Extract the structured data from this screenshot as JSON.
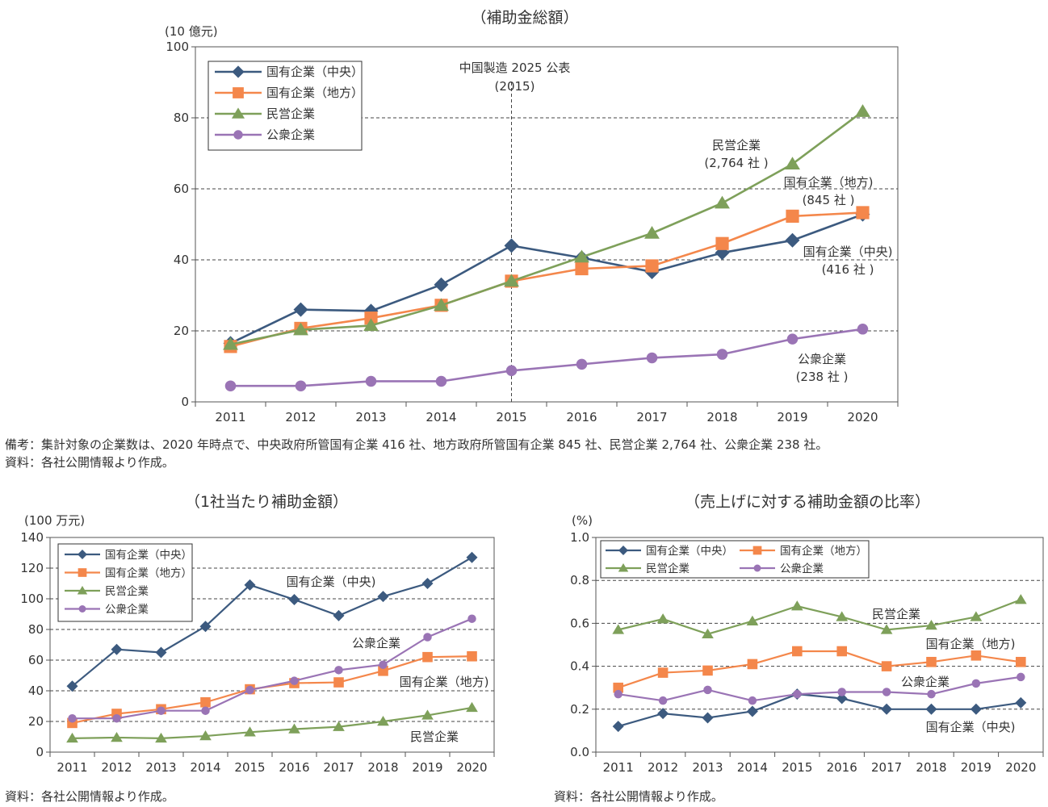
{
  "colors": {
    "soe_central": "#3c5a7f",
    "soe_local": "#f4874b",
    "private": "#7ea05a",
    "public": "#9a74b5",
    "grid": "#444444",
    "axis": "#555555"
  },
  "notes": {
    "top_note": "備考：集計対象の企業数は、2020 年時点で、中央政府所管国有企業 416 社、地方政府所管国有企業 845 社、民営企業 2,764 社、公衆企業 238 社。",
    "top_source": "資料：各社公開情報より作成。",
    "bl_source": "資料：各社公開情報より作成。",
    "br_source": "資料：各社公開情報より作成。"
  },
  "chart_data": [
    {
      "type": "line",
      "title": "（補助金総額）",
      "ylabel": "(10 億元)",
      "x": [
        "2011",
        "2012",
        "2013",
        "2014",
        "2015",
        "2016",
        "2017",
        "2018",
        "2019",
        "2020"
      ],
      "ylim": [
        0,
        100
      ],
      "yticks": [
        0,
        20,
        40,
        60,
        80,
        100
      ],
      "ytick_labels": [
        "0",
        "20",
        "40",
        "60",
        "80",
        "100"
      ],
      "grid": true,
      "legend": "top-left",
      "vline": {
        "x": "2015",
        "label1": "中国製造 2025 公表",
        "label2": "(2015)"
      },
      "series": [
        {
          "key": "soe_central",
          "name": "国有企業（中央）",
          "marker": "diamond",
          "values": [
            16.5,
            26.0,
            25.6,
            33.0,
            44.0,
            40.6,
            36.6,
            42.0,
            45.5,
            52.8
          ]
        },
        {
          "key": "soe_local",
          "name": "国有企業（地方）",
          "marker": "square",
          "values": [
            15.6,
            20.7,
            23.6,
            27.2,
            34.0,
            37.5,
            38.3,
            44.6,
            52.3,
            53.3
          ]
        },
        {
          "key": "private",
          "name": "民営企業",
          "marker": "triangle",
          "values": [
            16.2,
            20.3,
            21.5,
            27.2,
            34.0,
            40.8,
            47.5,
            56.0,
            67.0,
            81.8
          ]
        },
        {
          "key": "public",
          "name": "公衆企業",
          "marker": "circle",
          "values": [
            4.5,
            4.5,
            5.8,
            5.8,
            8.8,
            10.6,
            12.4,
            13.4,
            17.7,
            20.5
          ]
        }
      ],
      "annotations": [
        {
          "series": "private",
          "lines": [
            "民営企業",
            "(2,764 社 )"
          ]
        },
        {
          "series": "soe_local",
          "lines": [
            "国有企業（地方)",
            "(845 社 )"
          ]
        },
        {
          "series": "soe_central",
          "lines": [
            "国有企業（中央)",
            "(416 社 )"
          ]
        },
        {
          "series": "public",
          "lines": [
            "公衆企業",
            "(238 社 )"
          ]
        }
      ]
    },
    {
      "type": "line",
      "title": "（1社当たり補助金額）",
      "ylabel": "(100 万元)",
      "x": [
        "2011",
        "2012",
        "2013",
        "2014",
        "2015",
        "2016",
        "2017",
        "2018",
        "2019",
        "2020"
      ],
      "ylim": [
        0,
        140
      ],
      "yticks": [
        0,
        20,
        40,
        60,
        80,
        100,
        120,
        140
      ],
      "ytick_labels": [
        "0",
        "20",
        "40",
        "60",
        "80",
        "100",
        "120",
        "140"
      ],
      "grid": true,
      "legend": "top-left",
      "series": [
        {
          "key": "soe_central",
          "name": "国有企業（中央）",
          "marker": "diamond",
          "values": [
            43,
            67,
            65,
            82,
            109,
            99.5,
            89,
            101.5,
            110,
            127
          ]
        },
        {
          "key": "soe_local",
          "name": "国有企業（地方）",
          "marker": "square",
          "values": [
            19,
            25,
            28,
            32.5,
            41,
            45,
            45.5,
            53,
            62,
            62.5
          ]
        },
        {
          "key": "private",
          "name": "民営企業",
          "marker": "triangle",
          "values": [
            9,
            9.5,
            9,
            10.5,
            13,
            15,
            16.5,
            20,
            24,
            29
          ]
        },
        {
          "key": "public",
          "name": "公衆企業",
          "marker": "circle",
          "values": [
            22,
            22,
            27,
            27,
            40.5,
            46.5,
            53.5,
            57,
            75,
            87
          ]
        }
      ],
      "annotations": [
        {
          "series": "soe_central",
          "lines": [
            "国有企業（中央)"
          ]
        },
        {
          "series": "public",
          "lines": [
            "公衆企業"
          ]
        },
        {
          "series": "soe_local",
          "lines": [
            "国有企業（地方)"
          ]
        },
        {
          "series": "private",
          "lines": [
            "民営企業"
          ]
        }
      ]
    },
    {
      "type": "line",
      "title": "（売上げに対する補助金額の比率）",
      "ylabel": "(%)",
      "x": [
        "2011",
        "2012",
        "2013",
        "2014",
        "2015",
        "2016",
        "2017",
        "2018",
        "2019",
        "2020"
      ],
      "ylim": [
        0,
        1.0
      ],
      "yticks": [
        0,
        0.2,
        0.4,
        0.6,
        0.8,
        1.0
      ],
      "ytick_labels": [
        "0.0",
        "0.2",
        "0.4",
        "0.6",
        "0.8",
        "1.0"
      ],
      "grid": true,
      "legend": "top-left",
      "series": [
        {
          "key": "soe_central",
          "name": "国有企業（中央）",
          "marker": "diamond",
          "values": [
            0.12,
            0.18,
            0.16,
            0.19,
            0.27,
            0.25,
            0.2,
            0.2,
            0.2,
            0.23
          ]
        },
        {
          "key": "soe_local",
          "name": "国有企業（地方）",
          "marker": "square",
          "values": [
            0.3,
            0.37,
            0.38,
            0.41,
            0.47,
            0.47,
            0.4,
            0.42,
            0.45,
            0.42
          ]
        },
        {
          "key": "private",
          "name": "民営企業",
          "marker": "triangle",
          "values": [
            0.57,
            0.62,
            0.55,
            0.61,
            0.68,
            0.63,
            0.57,
            0.59,
            0.63,
            0.71
          ]
        },
        {
          "key": "public",
          "name": "公衆企業",
          "marker": "circle",
          "values": [
            0.27,
            0.24,
            0.29,
            0.24,
            0.27,
            0.28,
            0.28,
            0.27,
            0.32,
            0.35
          ]
        }
      ],
      "annotations": [
        {
          "series": "private",
          "lines": [
            "民営企業"
          ]
        },
        {
          "series": "soe_local",
          "lines": [
            "国有企業（地方)"
          ]
        },
        {
          "series": "public",
          "lines": [
            "公衆企業"
          ]
        },
        {
          "series": "soe_central",
          "lines": [
            "国有企業（中央)"
          ]
        }
      ]
    }
  ]
}
